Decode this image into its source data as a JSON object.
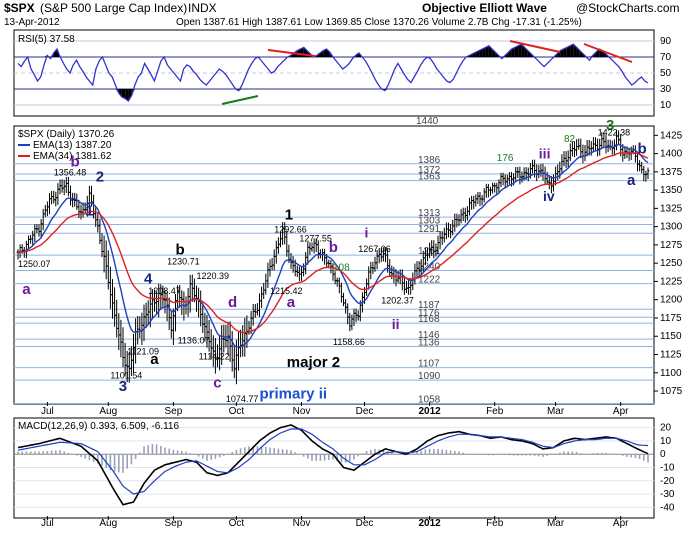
{
  "header": {
    "symbol": "$SPX",
    "name": "(S&P 500 Large Cap Index)",
    "exchange": "INDX",
    "date": "13-Apr-2012",
    "title": "Objective Elliott Wave",
    "copyright": "@StockCharts.com",
    "ohlc": "Open 1387.61  High 1387.61  Low 1369.85  Close 1370.26  Volume 2.7B  Chg -17.31 (-1.25%)"
  },
  "rsi": {
    "label": "RSI(5) 37.58",
    "levels": [
      90,
      70,
      50,
      30,
      10
    ],
    "values": [
      62,
      58,
      65,
      70,
      55,
      48,
      40,
      45,
      60,
      72,
      68,
      75,
      80,
      70,
      62,
      55,
      50,
      60,
      66,
      58,
      52,
      45,
      40,
      35,
      55,
      65,
      70,
      60,
      50,
      45,
      35,
      25,
      20,
      18,
      15,
      22,
      35,
      45,
      50,
      62,
      55,
      48,
      40,
      52,
      65,
      70,
      60,
      55,
      50,
      45,
      40,
      55,
      60,
      58,
      52,
      48,
      42,
      38,
      35,
      40,
      45,
      50,
      55,
      52,
      48,
      42,
      36,
      30,
      28,
      35,
      45,
      55,
      62,
      68,
      70,
      65,
      60,
      55,
      50,
      52,
      58,
      62,
      66,
      70,
      72,
      75,
      78,
      80,
      82,
      78,
      74,
      70,
      72,
      75,
      78,
      80,
      76,
      70,
      65,
      60,
      55,
      58,
      62,
      68,
      72,
      75,
      70,
      65,
      58,
      50,
      42,
      35,
      30,
      28,
      35,
      45,
      55,
      62,
      55,
      48,
      42,
      38,
      45,
      52,
      60,
      66,
      70,
      68,
      62,
      55,
      50,
      45,
      40,
      38,
      42,
      50,
      58,
      65,
      70,
      72,
      74,
      76,
      78,
      80,
      82,
      84,
      80,
      76,
      72,
      68,
      72,
      76,
      80,
      82,
      84,
      86,
      82,
      78,
      74,
      70,
      66,
      62,
      58,
      62,
      66,
      70,
      74,
      78,
      80,
      82,
      84,
      86,
      82,
      78,
      74,
      70,
      66,
      72,
      76,
      80,
      78,
      74,
      70,
      66,
      62,
      58,
      52,
      45,
      40,
      35,
      38,
      42,
      45,
      40,
      37.58
    ]
  },
  "price": {
    "legend_title": "$SPX (Daily) 1370.26",
    "ema13": "EMA(13) 1387.20",
    "ema34": "EMA(34) 1381.62",
    "ylim": [
      1060,
      1435
    ],
    "yticks": [
      1425,
      1400,
      1375,
      1350,
      1325,
      1300,
      1275,
      1250,
      1225,
      1200,
      1175,
      1150,
      1125,
      1100,
      1075
    ],
    "levels": [
      1440,
      1386,
      1372,
      1363,
      1313,
      1303,
      1291,
      1261,
      1240,
      1222,
      1187,
      1176,
      1168,
      1146,
      1136,
      1107,
      1090,
      1058
    ],
    "xlabels": [
      "Jul",
      "Aug",
      "Sep",
      "Oct",
      "Nov",
      "Dec",
      "2012",
      "Feb",
      "Mar",
      "Apr"
    ],
    "xlabel_days": [
      14,
      43,
      74,
      104,
      135,
      165,
      196,
      227,
      256,
      287
    ],
    "anchors": [
      [
        0,
        1262
      ],
      [
        5,
        1280
      ],
      [
        10,
        1300
      ],
      [
        15,
        1335
      ],
      [
        20,
        1352
      ],
      [
        23,
        1356
      ],
      [
        27,
        1330
      ],
      [
        30,
        1318
      ],
      [
        34,
        1340
      ],
      [
        38,
        1300
      ],
      [
        42,
        1240
      ],
      [
        46,
        1180
      ],
      [
        50,
        1120
      ],
      [
        53,
        1105
      ],
      [
        56,
        1150
      ],
      [
        60,
        1175
      ],
      [
        63,
        1190
      ],
      [
        67,
        1208
      ],
      [
        70,
        1198
      ],
      [
        73,
        1165
      ],
      [
        76,
        1210
      ],
      [
        79,
        1190
      ],
      [
        82,
        1218
      ],
      [
        86,
        1195
      ],
      [
        90,
        1150
      ],
      [
        94,
        1120
      ],
      [
        97,
        1140
      ],
      [
        100,
        1150
      ],
      [
        103,
        1108
      ],
      [
        106,
        1140
      ],
      [
        110,
        1165
      ],
      [
        114,
        1190
      ],
      [
        118,
        1225
      ],
      [
        122,
        1262
      ],
      [
        126,
        1292
      ],
      [
        130,
        1250
      ],
      [
        134,
        1230
      ],
      [
        138,
        1268
      ],
      [
        142,
        1275
      ],
      [
        146,
        1255
      ],
      [
        150,
        1240
      ],
      [
        154,
        1205
      ],
      [
        158,
        1170
      ],
      [
        162,
        1180
      ],
      [
        165,
        1215
      ],
      [
        168,
        1240
      ],
      [
        172,
        1265
      ],
      [
        175,
        1255
      ],
      [
        178,
        1235
      ],
      [
        182,
        1225
      ],
      [
        186,
        1215
      ],
      [
        190,
        1240
      ],
      [
        194,
        1260
      ],
      [
        198,
        1270
      ],
      [
        202,
        1285
      ],
      [
        206,
        1300
      ],
      [
        210,
        1310
      ],
      [
        214,
        1325
      ],
      [
        218,
        1338
      ],
      [
        222,
        1345
      ],
      [
        226,
        1355
      ],
      [
        230,
        1362
      ],
      [
        234,
        1368
      ],
      [
        238,
        1370
      ],
      [
        242,
        1374
      ],
      [
        246,
        1378
      ],
      [
        250,
        1375
      ],
      [
        252,
        1355
      ],
      [
        255,
        1365
      ],
      [
        258,
        1380
      ],
      [
        262,
        1400
      ],
      [
        266,
        1408
      ],
      [
        270,
        1402
      ],
      [
        274,
        1410
      ],
      [
        278,
        1415
      ],
      [
        282,
        1408
      ],
      [
        285,
        1420
      ],
      [
        288,
        1400
      ],
      [
        291,
        1405
      ],
      [
        294,
        1395
      ],
      [
        297,
        1378
      ],
      [
        300,
        1370
      ]
    ]
  },
  "macd": {
    "label": "MACD(12,26,9) 0.393, 6.509, -6.116",
    "yticks": [
      20,
      10,
      0,
      -10,
      -20,
      -30,
      -40
    ],
    "ylim": [
      -45,
      25
    ],
    "anchors": [
      [
        0,
        5
      ],
      [
        10,
        8
      ],
      [
        20,
        12
      ],
      [
        30,
        6
      ],
      [
        38,
        -5
      ],
      [
        45,
        -25
      ],
      [
        50,
        -38
      ],
      [
        55,
        -36
      ],
      [
        60,
        -22
      ],
      [
        65,
        -12
      ],
      [
        70,
        -8
      ],
      [
        75,
        -6
      ],
      [
        80,
        -4
      ],
      [
        85,
        -6
      ],
      [
        90,
        -14
      ],
      [
        95,
        -16
      ],
      [
        100,
        -14
      ],
      [
        105,
        -6
      ],
      [
        110,
        2
      ],
      [
        115,
        10
      ],
      [
        120,
        16
      ],
      [
        125,
        20
      ],
      [
        130,
        22
      ],
      [
        135,
        18
      ],
      [
        140,
        10
      ],
      [
        145,
        4
      ],
      [
        150,
        0
      ],
      [
        155,
        -10
      ],
      [
        160,
        -12
      ],
      [
        165,
        -6
      ],
      [
        170,
        0
      ],
      [
        175,
        4
      ],
      [
        180,
        2
      ],
      [
        185,
        0
      ],
      [
        190,
        4
      ],
      [
        195,
        10
      ],
      [
        200,
        14
      ],
      [
        205,
        16
      ],
      [
        210,
        17
      ],
      [
        215,
        15
      ],
      [
        220,
        14
      ],
      [
        225,
        12
      ],
      [
        230,
        13
      ],
      [
        235,
        11
      ],
      [
        240,
        10
      ],
      [
        245,
        8
      ],
      [
        250,
        4
      ],
      [
        255,
        5
      ],
      [
        260,
        10
      ],
      [
        265,
        12
      ],
      [
        270,
        11
      ],
      [
        275,
        12
      ],
      [
        280,
        13
      ],
      [
        285,
        12
      ],
      [
        290,
        8
      ],
      [
        295,
        4
      ],
      [
        300,
        0.39
      ]
    ],
    "signal_anchors": [
      [
        0,
        3
      ],
      [
        10,
        6
      ],
      [
        20,
        9
      ],
      [
        30,
        8
      ],
      [
        38,
        2
      ],
      [
        45,
        -12
      ],
      [
        50,
        -24
      ],
      [
        55,
        -30
      ],
      [
        60,
        -28
      ],
      [
        65,
        -20
      ],
      [
        70,
        -13
      ],
      [
        75,
        -9
      ],
      [
        80,
        -6
      ],
      [
        85,
        -5
      ],
      [
        90,
        -9
      ],
      [
        95,
        -13
      ],
      [
        100,
        -14
      ],
      [
        105,
        -10
      ],
      [
        110,
        -4
      ],
      [
        115,
        4
      ],
      [
        120,
        11
      ],
      [
        125,
        16
      ],
      [
        130,
        19
      ],
      [
        135,
        19
      ],
      [
        140,
        15
      ],
      [
        145,
        9
      ],
      [
        150,
        4
      ],
      [
        155,
        -3
      ],
      [
        160,
        -8
      ],
      [
        165,
        -8
      ],
      [
        170,
        -4
      ],
      [
        175,
        1
      ],
      [
        180,
        2
      ],
      [
        185,
        1
      ],
      [
        190,
        2
      ],
      [
        195,
        6
      ],
      [
        200,
        10
      ],
      [
        205,
        13
      ],
      [
        210,
        15
      ],
      [
        215,
        15
      ],
      [
        220,
        14
      ],
      [
        225,
        13
      ],
      [
        230,
        13
      ],
      [
        235,
        12
      ],
      [
        240,
        11
      ],
      [
        245,
        9
      ],
      [
        250,
        6
      ],
      [
        255,
        5
      ],
      [
        260,
        8
      ],
      [
        265,
        10
      ],
      [
        270,
        11
      ],
      [
        275,
        11
      ],
      [
        280,
        12
      ],
      [
        285,
        12
      ],
      [
        290,
        10
      ],
      [
        295,
        7
      ],
      [
        300,
        6.51
      ]
    ]
  },
  "annotations": [
    {
      "text": "3",
      "day": 280,
      "price": 1432,
      "color": "#1b7a1b",
      "size": 15
    },
    {
      "text": "1422.38",
      "day": 276,
      "price": 1425,
      "color": "#000",
      "size": 9
    },
    {
      "text": "b",
      "day": 295,
      "price": 1400,
      "color": "#1a237e",
      "size": 15
    },
    {
      "text": "a",
      "day": 290,
      "price": 1357,
      "color": "#1a237e",
      "size": 15
    },
    {
      "text": "82",
      "day": 260,
      "price": 1416,
      "color": "#1b7a1b",
      "size": 10
    },
    {
      "text": "176",
      "day": 228,
      "price": 1390,
      "color": "#1b7a1b",
      "size": 10
    },
    {
      "text": "iii",
      "day": 248,
      "price": 1393,
      "color": "#6a1b9a",
      "size": 14
    },
    {
      "text": "iv",
      "day": 250,
      "price": 1335,
      "color": "#1a237e",
      "size": 14
    },
    {
      "text": "b",
      "day": 25,
      "price": 1382,
      "color": "#6a1b9a",
      "size": 15
    },
    {
      "text": "1356.48",
      "day": 17,
      "price": 1370,
      "color": "#000",
      "size": 9
    },
    {
      "text": "2",
      "day": 37,
      "price": 1362,
      "color": "#1a237e",
      "size": 15
    },
    {
      "text": "1",
      "day": 32,
      "price": 1315,
      "color": "#1a237e",
      "size": 15
    },
    {
      "text": "1250.07",
      "day": 0,
      "price": 1245,
      "color": "#000",
      "size": 9
    },
    {
      "text": "a",
      "day": 2,
      "price": 1208,
      "color": "#6a1b9a",
      "size": 15
    },
    {
      "text": "4",
      "day": 60,
      "price": 1222,
      "color": "#1a237e",
      "size": 15
    },
    {
      "text": "1208.47",
      "day": 62,
      "price": 1208,
      "color": "#000",
      "size": 9
    },
    {
      "text": "b",
      "day": 75,
      "price": 1262,
      "color": "#000",
      "size": 15
    },
    {
      "text": "1230.71",
      "day": 71,
      "price": 1248,
      "color": "#000",
      "size": 9
    },
    {
      "text": "1220.39",
      "day": 85,
      "price": 1228,
      "color": "#000",
      "size": 9
    },
    {
      "text": "d",
      "day": 100,
      "price": 1190,
      "color": "#6a1b9a",
      "size": 15
    },
    {
      "text": "a",
      "day": 63,
      "price": 1112,
      "color": "#000",
      "size": 15
    },
    {
      "text": "1121.09",
      "day": 52,
      "price": 1125,
      "color": "#000",
      "size": 9
    },
    {
      "text": "1101.54",
      "day": 44,
      "price": 1092,
      "color": "#000",
      "size": 9
    },
    {
      "text": "3",
      "day": 48,
      "price": 1075,
      "color": "#1a237e",
      "size": 15
    },
    {
      "text": "1136.07",
      "day": 76,
      "price": 1140,
      "color": "#000",
      "size": 9
    },
    {
      "text": "1114.22",
      "day": 86,
      "price": 1118,
      "color": "#000",
      "size": 9
    },
    {
      "text": "c",
      "day": 93,
      "price": 1080,
      "color": "#6a1b9a",
      "size": 15
    },
    {
      "text": "1074.77",
      "day": 99,
      "price": 1060,
      "color": "#000",
      "size": 9
    },
    {
      "text": "primary ii",
      "day": 115,
      "price": 1065,
      "color": "#1a4fd0",
      "size": 15
    },
    {
      "text": "1",
      "day": 127,
      "price": 1310,
      "color": "#000",
      "size": 15
    },
    {
      "text": "1292.66",
      "day": 122,
      "price": 1292,
      "color": "#000",
      "size": 9
    },
    {
      "text": "1277.55",
      "day": 134,
      "price": 1280,
      "color": "#000",
      "size": 9
    },
    {
      "text": "b",
      "day": 148,
      "price": 1265,
      "color": "#6a1b9a",
      "size": 15
    },
    {
      "text": "a",
      "day": 128,
      "price": 1190,
      "color": "#6a1b9a",
      "size": 15
    },
    {
      "text": "1215.42",
      "day": 120,
      "price": 1208,
      "color": "#000",
      "size": 9
    },
    {
      "text": "108",
      "day": 150,
      "price": 1240,
      "color": "#1b7a1b",
      "size": 10
    },
    {
      "text": "i",
      "day": 165,
      "price": 1285,
      "color": "#6a1b9a",
      "size": 14
    },
    {
      "text": "1267.06",
      "day": 162,
      "price": 1265,
      "color": "#000",
      "size": 9
    },
    {
      "text": "1202.37",
      "day": 173,
      "price": 1195,
      "color": "#000",
      "size": 9
    },
    {
      "text": "ii",
      "day": 178,
      "price": 1160,
      "color": "#6a1b9a",
      "size": 14
    },
    {
      "text": "1158.66",
      "day": 150,
      "price": 1138,
      "color": "#000",
      "size": 9
    },
    {
      "text": "major 2",
      "day": 128,
      "price": 1108,
      "color": "#000",
      "size": 15
    }
  ],
  "colors": {
    "price": "#000000",
    "ema13": "#1f3fbf",
    "ema34": "#e02020",
    "level": "#8fb4e0",
    "macd": "#000000",
    "signal": "#1f3fbf",
    "hist": "#9aa0b8",
    "rsi": "#3333cc",
    "up": "#1b7a1b",
    "down": "#e02020"
  }
}
